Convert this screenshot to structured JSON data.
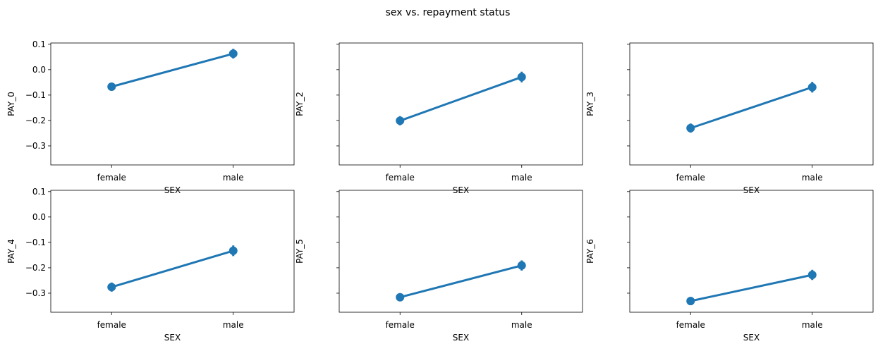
{
  "figure": {
    "title": "sex vs. repayment status"
  },
  "chart_data": [
    {
      "type": "line",
      "title": "",
      "xlabel": "SEX",
      "ylabel": "PAY_0",
      "categories": [
        "female",
        "male"
      ],
      "values": [
        -0.067,
        0.063
      ],
      "ci": [
        [
          -0.082,
          -0.052
        ],
        [
          0.044,
          0.082
        ]
      ],
      "ylim": [
        -0.375,
        0.105
      ],
      "yticks": [
        0.1,
        0.0,
        -0.1,
        -0.2,
        -0.3
      ],
      "ytick_labels": [
        "0.1",
        "0.0",
        "−0.1",
        "−0.2",
        "−0.3"
      ],
      "color": "#1f77b4",
      "grid": false
    },
    {
      "type": "line",
      "title": "",
      "xlabel": "SEX",
      "ylabel": "PAY_2",
      "categories": [
        "female",
        "male"
      ],
      "values": [
        -0.201,
        -0.029
      ],
      "ci": [
        [
          -0.219,
          -0.183
        ],
        [
          -0.05,
          -0.008
        ]
      ],
      "ylim": [
        -0.375,
        0.105
      ],
      "yticks": [
        0.1,
        0.0,
        -0.1,
        -0.2,
        -0.3
      ],
      "ytick_labels": [
        "",
        "",
        "",
        "",
        ""
      ],
      "color": "#1f77b4",
      "grid": false
    },
    {
      "type": "line",
      "title": "",
      "xlabel": "SEX",
      "ylabel": "PAY_3",
      "categories": [
        "female",
        "male"
      ],
      "values": [
        -0.23,
        -0.069
      ],
      "ci": [
        [
          -0.248,
          -0.212
        ],
        [
          -0.09,
          -0.048
        ]
      ],
      "ylim": [
        -0.375,
        0.105
      ],
      "yticks": [
        0.1,
        0.0,
        -0.1,
        -0.2,
        -0.3
      ],
      "ytick_labels": [
        "",
        "",
        "",
        "",
        ""
      ],
      "color": "#1f77b4",
      "grid": false
    },
    {
      "type": "line",
      "title": "",
      "xlabel": "SEX",
      "ylabel": "PAY_4",
      "categories": [
        "female",
        "male"
      ],
      "values": [
        -0.276,
        -0.133
      ],
      "ci": [
        [
          -0.294,
          -0.258
        ],
        [
          -0.154,
          -0.112
        ]
      ],
      "ylim": [
        -0.375,
        0.105
      ],
      "yticks": [
        0.1,
        0.0,
        -0.1,
        -0.2,
        -0.3
      ],
      "ytick_labels": [
        "0.1",
        "0.0",
        "−0.1",
        "−0.2",
        "−0.3"
      ],
      "color": "#1f77b4",
      "grid": false
    },
    {
      "type": "line",
      "title": "",
      "xlabel": "SEX",
      "ylabel": "PAY_5",
      "categories": [
        "female",
        "male"
      ],
      "values": [
        -0.316,
        -0.191
      ],
      "ci": [
        [
          -0.332,
          -0.3
        ],
        [
          -0.211,
          -0.171
        ]
      ],
      "ylim": [
        -0.375,
        0.105
      ],
      "yticks": [
        0.1,
        0.0,
        -0.1,
        -0.2,
        -0.3
      ],
      "ytick_labels": [
        "",
        "",
        "",
        "",
        ""
      ],
      "color": "#1f77b4",
      "grid": false
    },
    {
      "type": "line",
      "title": "",
      "xlabel": "SEX",
      "ylabel": "PAY_6",
      "categories": [
        "female",
        "male"
      ],
      "values": [
        -0.331,
        -0.228
      ],
      "ci": [
        [
          -0.347,
          -0.315
        ],
        [
          -0.248,
          -0.208
        ]
      ],
      "ylim": [
        -0.375,
        0.105
      ],
      "yticks": [
        0.1,
        0.0,
        -0.1,
        -0.2,
        -0.3
      ],
      "ytick_labels": [
        "",
        "",
        "",
        "",
        ""
      ],
      "color": "#1f77b4",
      "grid": false
    }
  ]
}
